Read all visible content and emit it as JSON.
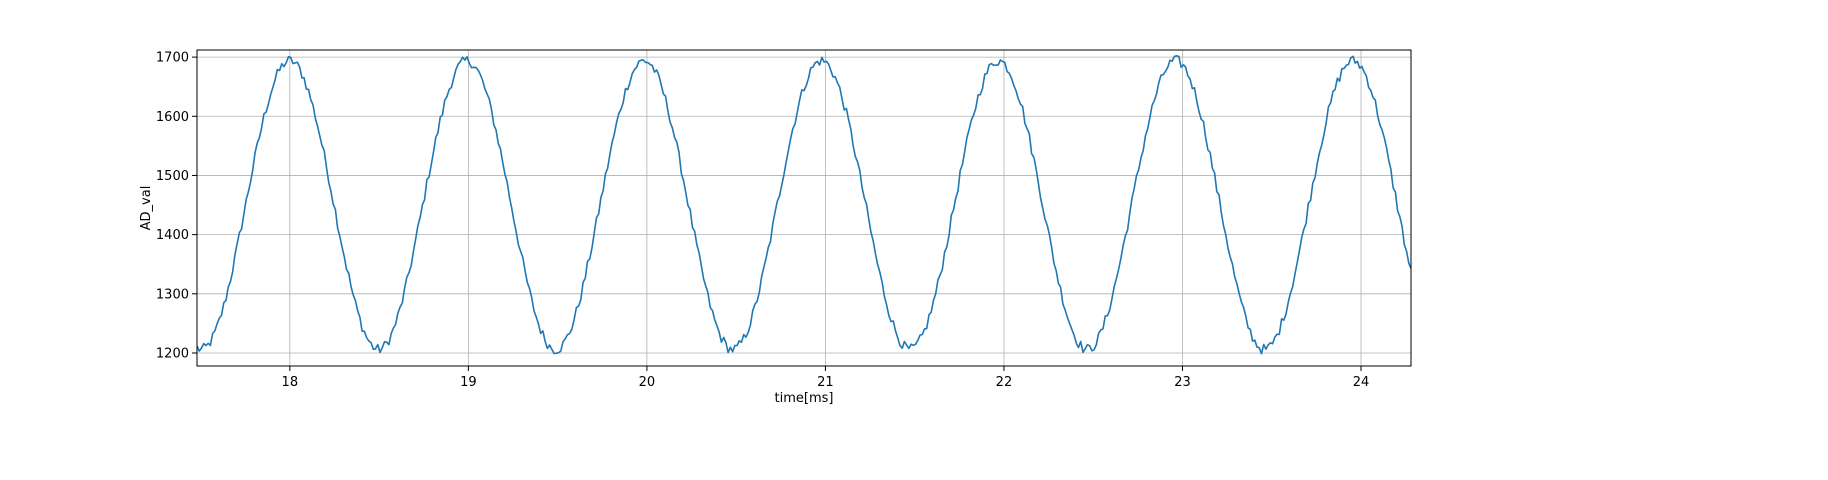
{
  "chart_data": {
    "type": "line",
    "title": "",
    "xlabel": "time[ms]",
    "ylabel": "AD_val",
    "xlim": [
      17.48,
      24.28
    ],
    "ylim": [
      1178,
      1712
    ],
    "xticks": [
      18,
      19,
      20,
      21,
      22,
      23,
      24
    ],
    "yticks": [
      1200,
      1300,
      1400,
      1500,
      1600,
      1700
    ],
    "grid": true,
    "legend": "none",
    "line_color": "#1f77b4",
    "signal": {
      "waveform": "sine",
      "x_start": 17.48,
      "x_end": 24.28,
      "x_step": 0.0125,
      "period": 0.9925,
      "first_peak": 18.0,
      "center": 1450,
      "amplitude": 244,
      "noise": 9
    }
  }
}
